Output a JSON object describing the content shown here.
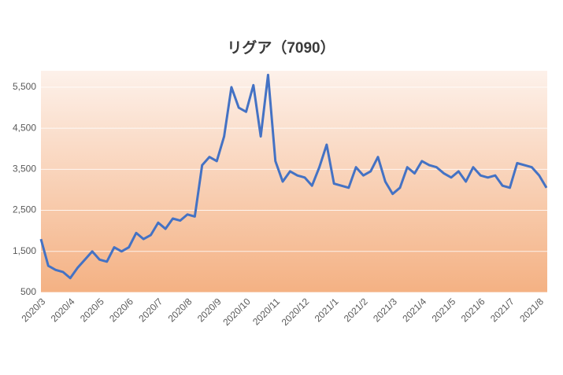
{
  "chart_data": {
    "type": "line",
    "title": "リグア（7090）",
    "categories": [
      "2020/3",
      null,
      null,
      null,
      "2020/4",
      null,
      null,
      null,
      "2020/5",
      null,
      null,
      null,
      "2020/6",
      null,
      null,
      null,
      "2020/7",
      null,
      null,
      null,
      "2020/8",
      null,
      null,
      null,
      "2020/9",
      null,
      null,
      null,
      "2020/10",
      null,
      null,
      null,
      "2020/11",
      null,
      null,
      null,
      "2020/12",
      null,
      null,
      null,
      "2021/1",
      null,
      null,
      null,
      "2021/2",
      null,
      null,
      null,
      "2021/3",
      null,
      null,
      null,
      "2021/4",
      null,
      null,
      null,
      "2021/5",
      null,
      null,
      null,
      "2021/6",
      null,
      null,
      null,
      "2021/7",
      null,
      null,
      null,
      "2021/8",
      null
    ],
    "series": [
      {
        "name": "リグア",
        "color": "#4472c4",
        "values": [
          1800,
          1150,
          1050,
          1000,
          850,
          1100,
          1300,
          1500,
          1300,
          1250,
          1600,
          1500,
          1600,
          1950,
          1800,
          1900,
          2200,
          2050,
          2300,
          2250,
          2400,
          2350,
          3600,
          3800,
          3700,
          4300,
          5500,
          5000,
          4900,
          5550,
          4300,
          5800,
          3700,
          3200,
          3450,
          3350,
          3300,
          3100,
          3550,
          4100,
          3150,
          3100,
          3050,
          3550,
          3350,
          3450,
          3800,
          3200,
          2900,
          3050,
          3550,
          3400,
          3700,
          3600,
          3550,
          3400,
          3300,
          3450,
          3200,
          3550,
          3350,
          3300,
          3350,
          3100,
          3050,
          3650,
          3600,
          3550,
          3350,
          3050
        ]
      }
    ],
    "ylim": [
      500,
      5900
    ],
    "yticks": [
      {
        "value": 500,
        "label": "500"
      },
      {
        "value": 1500,
        "label": "1,500"
      },
      {
        "value": 2500,
        "label": "2,500"
      },
      {
        "value": 3500,
        "label": "3,500"
      },
      {
        "value": 4500,
        "label": "4,500"
      },
      {
        "value": 5500,
        "label": "5,500"
      }
    ],
    "grid": true
  }
}
